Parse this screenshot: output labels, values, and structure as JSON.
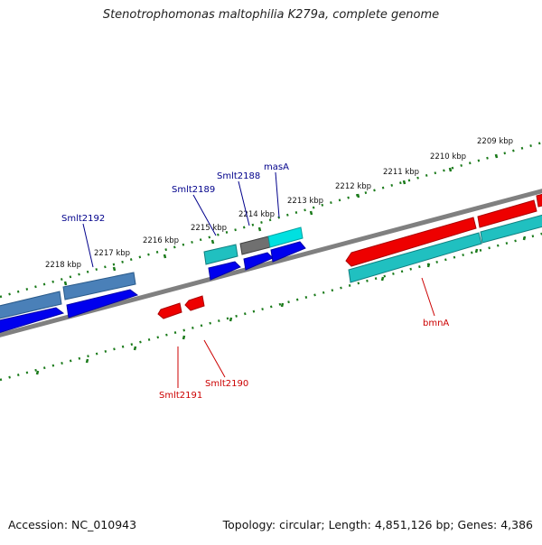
{
  "title": "Stenotrophomonas maltophilia K279a, complete genome",
  "footer": {
    "accession": "Accession: NC_010943",
    "summary": "Topology: circular; Length: 4,851,126 bp; Genes: 4,386"
  },
  "ticks": [
    "2209 kbp",
    "2210 kbp",
    "2211 kbp",
    "2212 kbp",
    "2213 kbp",
    "2214 kbp",
    "2215 kbp",
    "2216 kbp",
    "2217 kbp",
    "2218 kbp"
  ],
  "genes": [
    {
      "label": "Smlt2192",
      "color": "#00008b"
    },
    {
      "label": "Smlt2189",
      "color": "#00008b"
    },
    {
      "label": "Smlt2188",
      "color": "#00008b"
    },
    {
      "label": "masA",
      "color": "#00008b"
    },
    {
      "label": "bmnA",
      "color": "#cc0000"
    },
    {
      "label": "Smlt2191",
      "color": "#cc0000"
    },
    {
      "label": "Smlt2190",
      "color": "#cc0000"
    }
  ],
  "colors": {
    "backbone": "#808080",
    "tick": "#1a7a1a",
    "cds_forward": "#0000ee",
    "cds_reverse": "#ee0000",
    "rna_forward": "#20c0c0",
    "rna_steel": "#4a80b8",
    "gray_gene": "#707070",
    "cyan_gene": "#00e0e0"
  }
}
